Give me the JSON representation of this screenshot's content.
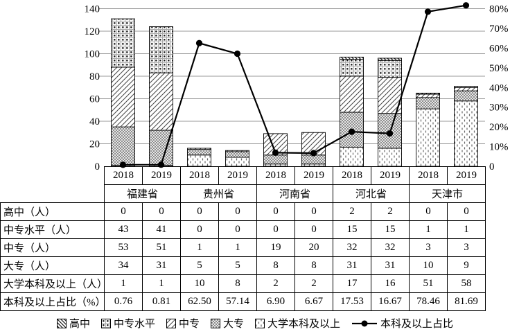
{
  "chart_data": {
    "type": "bar",
    "subtype": "stacked-bars-with-line",
    "groups": [
      "福建省",
      "贵州省",
      "河南省",
      "河北省",
      "天津市"
    ],
    "categories": [
      "2018",
      "2019",
      "2018",
      "2019",
      "2018",
      "2019",
      "2018",
      "2019",
      "2018",
      "2019"
    ],
    "stack_order_bottom_to_top": [
      "大学本科及以上",
      "大专",
      "中专",
      "中专水平",
      "高中"
    ],
    "series": [
      {
        "name": "高中",
        "values": [
          0,
          0,
          0,
          0,
          0,
          0,
          2,
          2,
          0,
          0
        ]
      },
      {
        "name": "中专水平",
        "values": [
          43,
          41,
          0,
          0,
          0,
          0,
          15,
          15,
          1,
          1
        ]
      },
      {
        "name": "中专",
        "values": [
          53,
          51,
          1,
          1,
          19,
          20,
          32,
          32,
          3,
          3
        ]
      },
      {
        "name": "大专",
        "values": [
          34,
          31,
          5,
          5,
          8,
          8,
          31,
          31,
          10,
          9
        ]
      },
      {
        "name": "大学本科及以上",
        "values": [
          1,
          1,
          10,
          8,
          2,
          2,
          17,
          16,
          51,
          58
        ]
      }
    ],
    "line_series": {
      "name": "本科及以上占比",
      "axis": "right",
      "values": [
        0.76,
        0.81,
        62.5,
        57.14,
        6.9,
        6.67,
        17.53,
        16.67,
        78.46,
        81.69
      ]
    },
    "left_axis": {
      "min": 0,
      "max": 140,
      "step": 20,
      "ticks": [
        "0",
        "20",
        "40",
        "60",
        "80",
        "100",
        "120",
        "140"
      ]
    },
    "right_axis": {
      "min": 0,
      "max": 80,
      "step": 10,
      "ticks": [
        "0",
        "10%",
        "20%",
        "30%",
        "40%",
        "50%",
        "60%",
        "70%",
        "80%"
      ]
    },
    "grid": "horizontal",
    "legend_position": "bottom"
  },
  "table": {
    "year_header": [
      "2018",
      "2019",
      "2018",
      "2019",
      "2018",
      "2019",
      "2018",
      "2019",
      "2018",
      "2019"
    ],
    "province_header": [
      "福建省",
      "贵州省",
      "河南省",
      "河北省",
      "天津市"
    ],
    "rows": [
      {
        "label": "高中（人）",
        "values": [
          "0",
          "0",
          "0",
          "0",
          "0",
          "0",
          "2",
          "2",
          "0",
          "0"
        ]
      },
      {
        "label": "中专水平（人）",
        "values": [
          "43",
          "41",
          "0",
          "0",
          "0",
          "0",
          "15",
          "15",
          "1",
          "1"
        ]
      },
      {
        "label": "中专（人）",
        "values": [
          "53",
          "51",
          "1",
          "1",
          "19",
          "20",
          "32",
          "32",
          "3",
          "3"
        ]
      },
      {
        "label": "大专（人）",
        "values": [
          "34",
          "31",
          "5",
          "5",
          "8",
          "8",
          "31",
          "31",
          "10",
          "9"
        ]
      },
      {
        "label": "大学本科及以上（人）",
        "values": [
          "1",
          "1",
          "10",
          "8",
          "2",
          "2",
          "17",
          "16",
          "51",
          "58"
        ]
      },
      {
        "label": "本科及以上占比（%）",
        "values": [
          "0.76",
          "0.81",
          "62.50",
          "57.14",
          "6.90",
          "6.67",
          "17.53",
          "16.67",
          "78.46",
          "81.69"
        ]
      }
    ]
  },
  "legend": {
    "items": [
      {
        "label": "高中",
        "swatch": "backslash-hatch"
      },
      {
        "label": "中专水平",
        "swatch": "dot-grid"
      },
      {
        "label": "中专",
        "swatch": "forward-diagonal"
      },
      {
        "label": "大专",
        "swatch": "dense-crosshatch"
      },
      {
        "label": "大学本科及以上",
        "swatch": "vertical-dashes"
      },
      {
        "label": "本科及以上占比",
        "swatch": "line-circle-marker"
      }
    ]
  },
  "colors": {
    "background": "#ffffff",
    "bar_outline": "#000000",
    "grid": "#9a9a9a",
    "line": "#000000",
    "text": "#000000"
  }
}
